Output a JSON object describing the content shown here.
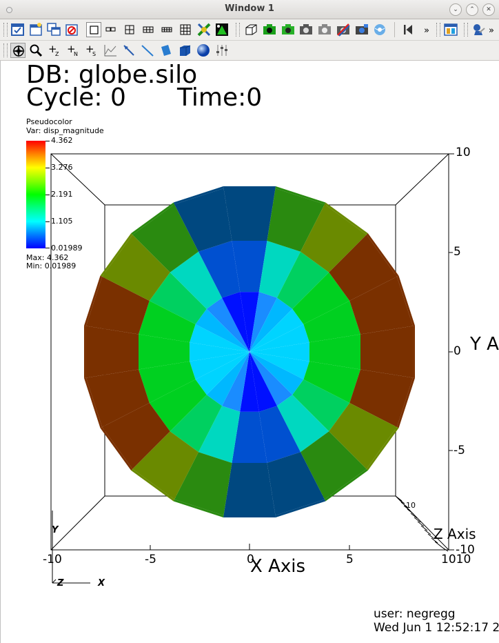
{
  "window": {
    "title": "Window 1"
  },
  "toolbar1_icons": [
    "check-icon",
    "new-window-icon",
    "clone-window-icon",
    "delete-window-icon",
    "layout-1x1-icon",
    "layout-1x2-icon",
    "layout-2x2-icon",
    "layout-2x3-icon",
    "layout-2x4-icon",
    "layout-3x3-icon",
    "lock-icon",
    "invert-icon",
    "box-icon",
    "camera-green-icon",
    "camera-green2-icon",
    "camera-icon",
    "camera-gray-icon",
    "camera-crossed-icon",
    "camera-blue-icon",
    "globe-camera-icon",
    "prev-icon",
    "more-icon",
    "panel-icon",
    "tool-icon",
    "more2-icon"
  ],
  "toolbar2_icons": [
    "navigate-icon",
    "zoom-icon",
    "plus-z-icon",
    "plus-n-icon",
    "plus-s-icon",
    "curve-icon",
    "pick-icon",
    "line-icon",
    "book-icon",
    "cube-icon",
    "sphere-icon",
    "sliders-icon"
  ],
  "plot": {
    "db": "DB: globe.silo",
    "cycle": "Cycle: 0",
    "time": "Time:0",
    "legend_type": "Pseudocolor",
    "legend_var": "Var: disp_magnitude",
    "legend_ticks": [
      "4.362",
      "3.276",
      "2.191",
      "1.105",
      "0.01989"
    ],
    "max_label": "Max:  4.362",
    "min_label": "Min:  0.01989",
    "y_ticks": [
      "10",
      "5",
      "0",
      "-5",
      "-10"
    ],
    "y_axis_label": "Y A",
    "x_ticks": [
      "-10",
      "-5",
      "0",
      "5",
      "1010"
    ],
    "x_axis_label": "X Axis",
    "z_axis_label": "Z Axis",
    "z_tick_top": "10",
    "triad": {
      "y": "Y",
      "z": "Z",
      "x": "X"
    },
    "user": "user: negregg",
    "date": "Wed Jun  1 12:52:17 2"
  },
  "colors": {
    "accent": "#4a90d9"
  }
}
